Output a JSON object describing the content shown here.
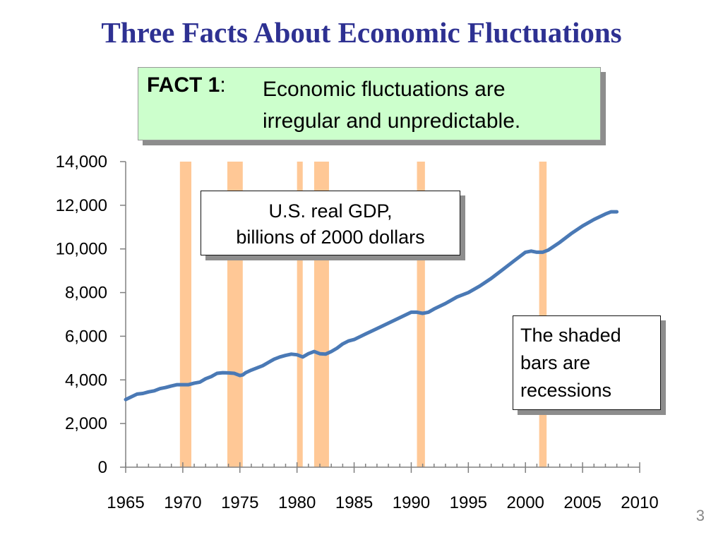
{
  "slide": {
    "title": "Three Facts About Economic Fluctuations",
    "page_number": "3"
  },
  "fact": {
    "label": "FACT 1",
    "colon": ":",
    "line1": "Economic fluctuations are",
    "line2": "irregular and unpredictable."
  },
  "annotations": {
    "gdp_line1": "U.S. real GDP,",
    "gdp_line2": "billions of 2000 dollars",
    "shade_line1": "The shaded",
    "shade_line2": "bars are",
    "shade_line3": "recessions"
  },
  "colors": {
    "title": "#2e3192",
    "line": "#4a79b5",
    "recession": "#ffc896",
    "fact_box": "#ccffcc"
  },
  "chart_data": {
    "type": "line",
    "title": "",
    "xlabel": "",
    "ylabel": "",
    "xlim": [
      1965,
      2010
    ],
    "ylim": [
      0,
      14000
    ],
    "x_ticks": [
      "1965",
      "1970",
      "1975",
      "1980",
      "1985",
      "1990",
      "1995",
      "2000",
      "2005",
      "2010"
    ],
    "y_ticks": [
      "0",
      "2,000",
      "4,000",
      "6,000",
      "8,000",
      "10,000",
      "12,000",
      "14,000"
    ],
    "grid": false,
    "recessions": [
      [
        1969.75,
        1970.75
      ],
      [
        1973.9,
        1975.25
      ],
      [
        1980.0,
        1980.5
      ],
      [
        1981.5,
        1982.8
      ],
      [
        1990.5,
        1991.2
      ],
      [
        2001.2,
        2001.85
      ]
    ],
    "series": [
      {
        "name": "",
        "x": [
          1965.0,
          1966.0,
          1966.5,
          1967.0,
          1967.5,
          1968.0,
          1968.5,
          1969.0,
          1969.5,
          1970.0,
          1970.5,
          1971.0,
          1971.5,
          1972.0,
          1972.5,
          1973.0,
          1973.5,
          1974.0,
          1974.5,
          1975.0,
          1975.25,
          1975.5,
          1976.0,
          1976.5,
          1977.0,
          1977.5,
          1978.0,
          1978.5,
          1979.0,
          1979.5,
          1980.0,
          1980.5,
          1981.0,
          1981.5,
          1982.0,
          1982.5,
          1983.0,
          1983.5,
          1984.0,
          1984.5,
          1985.0,
          1986.0,
          1987.0,
          1988.0,
          1989.0,
          1990.0,
          1990.5,
          1991.0,
          1991.5,
          1992.0,
          1993.0,
          1994.0,
          1995.0,
          1996.0,
          1997.0,
          1998.0,
          1999.0,
          2000.0,
          2000.5,
          2001.0,
          2001.5,
          2002.0,
          2003.0,
          2004.0,
          2005.0,
          2006.0,
          2007.0,
          2007.5,
          2008.0
        ],
        "values": [
          3100,
          3350,
          3380,
          3450,
          3500,
          3600,
          3650,
          3720,
          3780,
          3780,
          3780,
          3850,
          3900,
          4050,
          4150,
          4300,
          4330,
          4320,
          4300,
          4200,
          4230,
          4330,
          4450,
          4550,
          4650,
          4800,
          4950,
          5050,
          5120,
          5180,
          5150,
          5050,
          5200,
          5300,
          5200,
          5180,
          5300,
          5450,
          5650,
          5780,
          5850,
          6100,
          6350,
          6600,
          6850,
          7100,
          7100,
          7050,
          7100,
          7250,
          7500,
          7800,
          8000,
          8300,
          8650,
          9050,
          9450,
          9850,
          9900,
          9850,
          9850,
          9950,
          10300,
          10700,
          11050,
          11350,
          11600,
          11700,
          11700
        ]
      }
    ]
  }
}
